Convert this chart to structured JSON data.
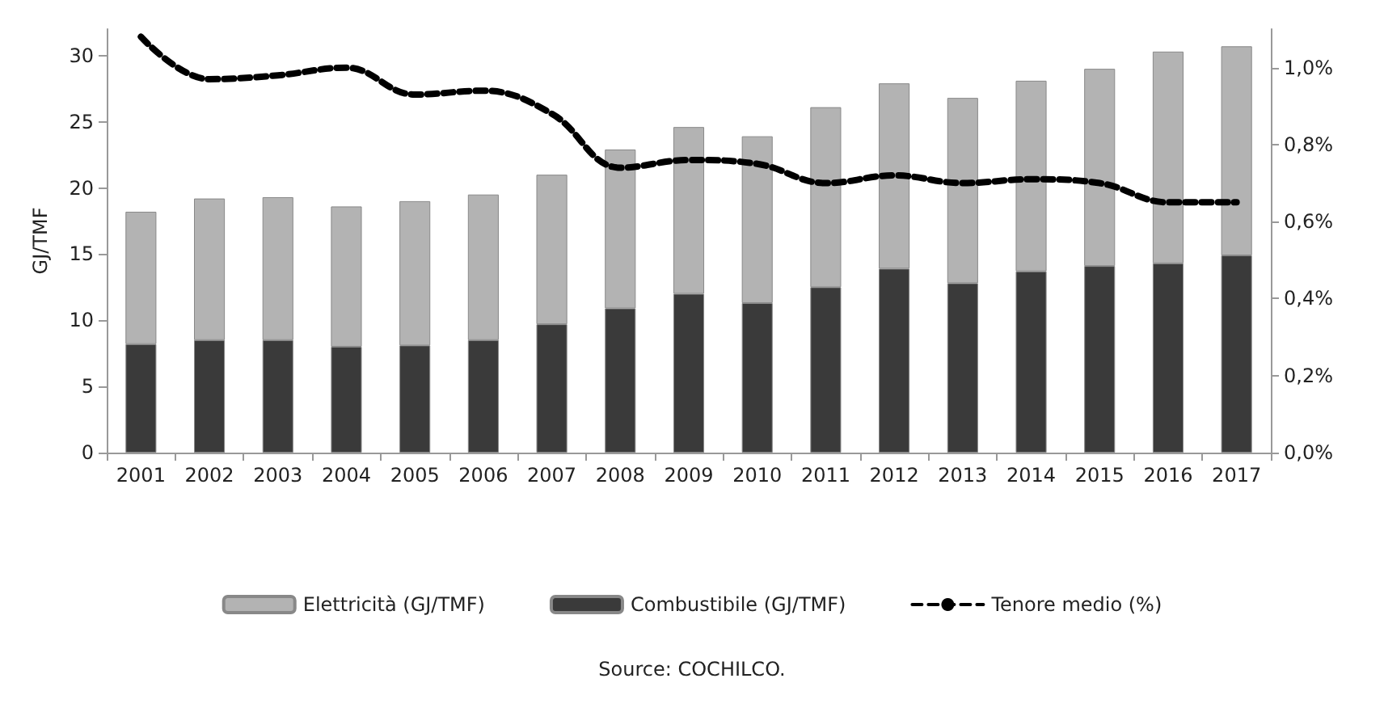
{
  "chart_data": {
    "type": "bar",
    "stacked": true,
    "ylabel": "GJ/TMF",
    "categories": [
      "2001",
      "2002",
      "2003",
      "2004",
      "2005",
      "2006",
      "2007",
      "2008",
      "2009",
      "2010",
      "2011",
      "2012",
      "2013",
      "2014",
      "2015",
      "2016",
      "2017"
    ],
    "series": [
      {
        "name": "Combustibile (GJ/TMF)",
        "color": "#3a3a3a",
        "values": [
          8.2,
          8.5,
          8.5,
          8.0,
          8.1,
          8.5,
          9.7,
          10.9,
          12.0,
          11.3,
          12.5,
          13.9,
          12.8,
          13.7,
          14.1,
          14.3,
          14.9
        ]
      },
      {
        "name": "Elettricità (GJ/TMF)",
        "color": "#b3b3b3",
        "values": [
          10.0,
          10.7,
          10.8,
          10.6,
          10.9,
          11.0,
          11.3,
          12.0,
          12.6,
          12.6,
          13.6,
          14.0,
          14.0,
          14.4,
          14.9,
          16.0,
          15.8
        ]
      },
      {
        "name": "Tenore medio (%)",
        "type": "line",
        "axis": "y2",
        "color": "#000000",
        "line_style": "dashed",
        "marker": "none",
        "values": [
          1.08,
          0.97,
          0.98,
          1.0,
          0.93,
          0.94,
          0.88,
          0.74,
          0.76,
          0.75,
          0.7,
          0.72,
          0.7,
          0.71,
          0.7,
          0.65,
          0.65
        ]
      }
    ],
    "ylim": [
      0,
      32
    ],
    "yticks": [
      0,
      5,
      10,
      15,
      20,
      25,
      30
    ],
    "y2lim": [
      0,
      1.1
    ],
    "y2ticks": [
      {
        "value": 0,
        "label": "0,0%"
      },
      {
        "value": 0.2,
        "label": "0,2%"
      },
      {
        "value": 0.4,
        "label": "0,4%"
      },
      {
        "value": 0.6,
        "label": "0,6%"
      },
      {
        "value": 0.8,
        "label": "0,8%"
      },
      {
        "value": 1.0,
        "label": "1,0%"
      }
    ],
    "grid": false,
    "legend": "bottom",
    "annotations": [
      "Source: COCHILCO."
    ]
  }
}
